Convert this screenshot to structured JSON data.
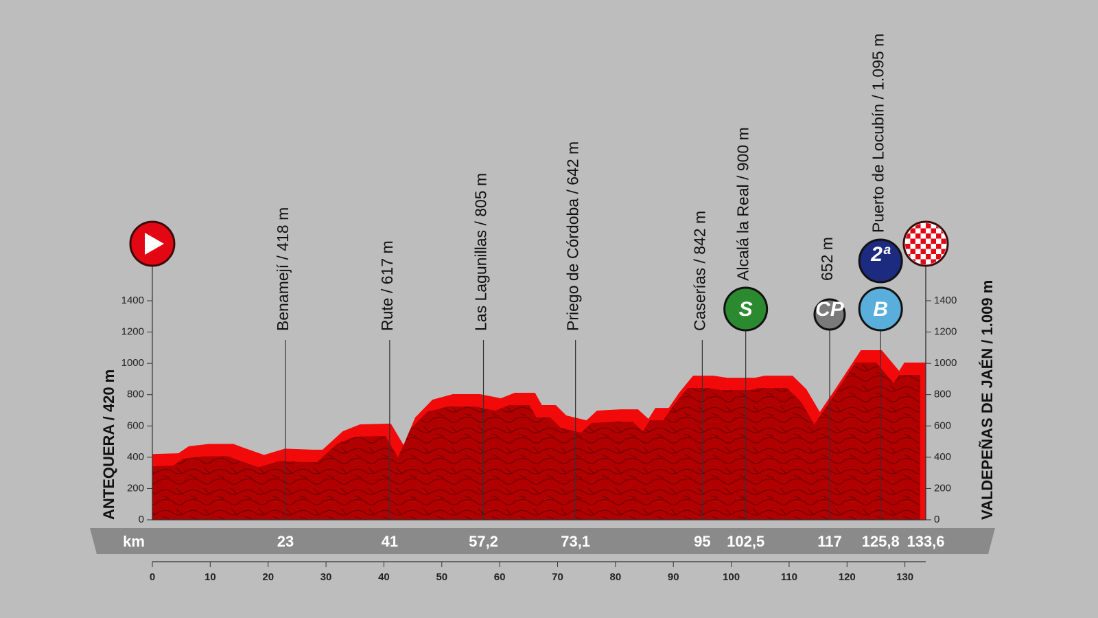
{
  "chart_data": {
    "type": "area",
    "color": "#f20a0a",
    "shade_color": "#b10000",
    "x": [
      0,
      4.5,
      6.3,
      9.8,
      14.0,
      15.8,
      19.3,
      22.9,
      27.6,
      29.4,
      32.9,
      35.9,
      41.2,
      43.4,
      45.4,
      48.4,
      51.9,
      56.6,
      60.2,
      62.6,
      66.1,
      67.3,
      69.7,
      71.5,
      75.0,
      76.8,
      80.9,
      83.9,
      85.7,
      86.9,
      89.2,
      91.0,
      93.4,
      96.9,
      99.3,
      104.1,
      105.8,
      110.6,
      113.0,
      115.3,
      117.7,
      122.4,
      126.0,
      129.0,
      129.9,
      133.6
    ],
    "values": [
      420,
      425,
      470,
      485,
      485,
      460,
      415,
      455,
      448,
      448,
      566,
      610,
      615,
      478,
      654,
      768,
      803,
      803,
      777,
      812,
      812,
      733,
      733,
      667,
      636,
      698,
      706,
      706,
      645,
      715,
      715,
      812,
      921,
      921,
      908,
      908,
      921,
      921,
      834,
      689,
      820,
      1084,
      1084,
      952,
      1005,
      1005
    ],
    "xlim": [
      0,
      133.6
    ],
    "ylim": [
      0,
      1400
    ],
    "xticks": [
      0,
      10,
      20,
      30,
      40,
      50,
      60,
      70,
      80,
      90,
      100,
      110,
      120,
      130
    ],
    "yticks": [
      0,
      200,
      400,
      600,
      800,
      1000,
      1200,
      1400
    ],
    "x_label": "km",
    "start_label": "ANTEQUERA / 420 m",
    "finish_label": "VALDEPEÑAS DE JAÉN / 1.009 m",
    "waypoints": [
      {
        "km": 23,
        "name": "Benamejí / 418 m"
      },
      {
        "km": 41,
        "name": "Rute / 617 m"
      },
      {
        "km": {
          "value": 57.2,
          "label": "57,2"
        },
        "name": "Las Lagunillas / 805 m"
      },
      {
        "km": {
          "value": 73.1,
          "label": "73,1"
        },
        "name": "Priego de Córdoba / 642 m"
      },
      {
        "km": 95,
        "name": "Caserías / 842 m"
      },
      {
        "km": {
          "value": 102.5,
          "label": "102,5"
        },
        "name": "Alcalá la Real / 900 m",
        "badges": [
          {
            "text": "S",
            "color": "#2b8a2f"
          }
        ]
      },
      {
        "km": 117,
        "name": "652 m",
        "badges": [
          {
            "text": "CP",
            "color": "#7a7a7a"
          }
        ]
      },
      {
        "km": {
          "value": 125.8,
          "label": "125,8"
        },
        "name": "Puerto de Locubín / 1.095 m",
        "badges": [
          {
            "text": "B",
            "color": "#5aaedc"
          },
          {
            "text": "2ª",
            "color": "#1c2a80"
          }
        ]
      },
      {
        "km": {
          "value": 133.6,
          "label": "133,6"
        }
      }
    ]
  }
}
